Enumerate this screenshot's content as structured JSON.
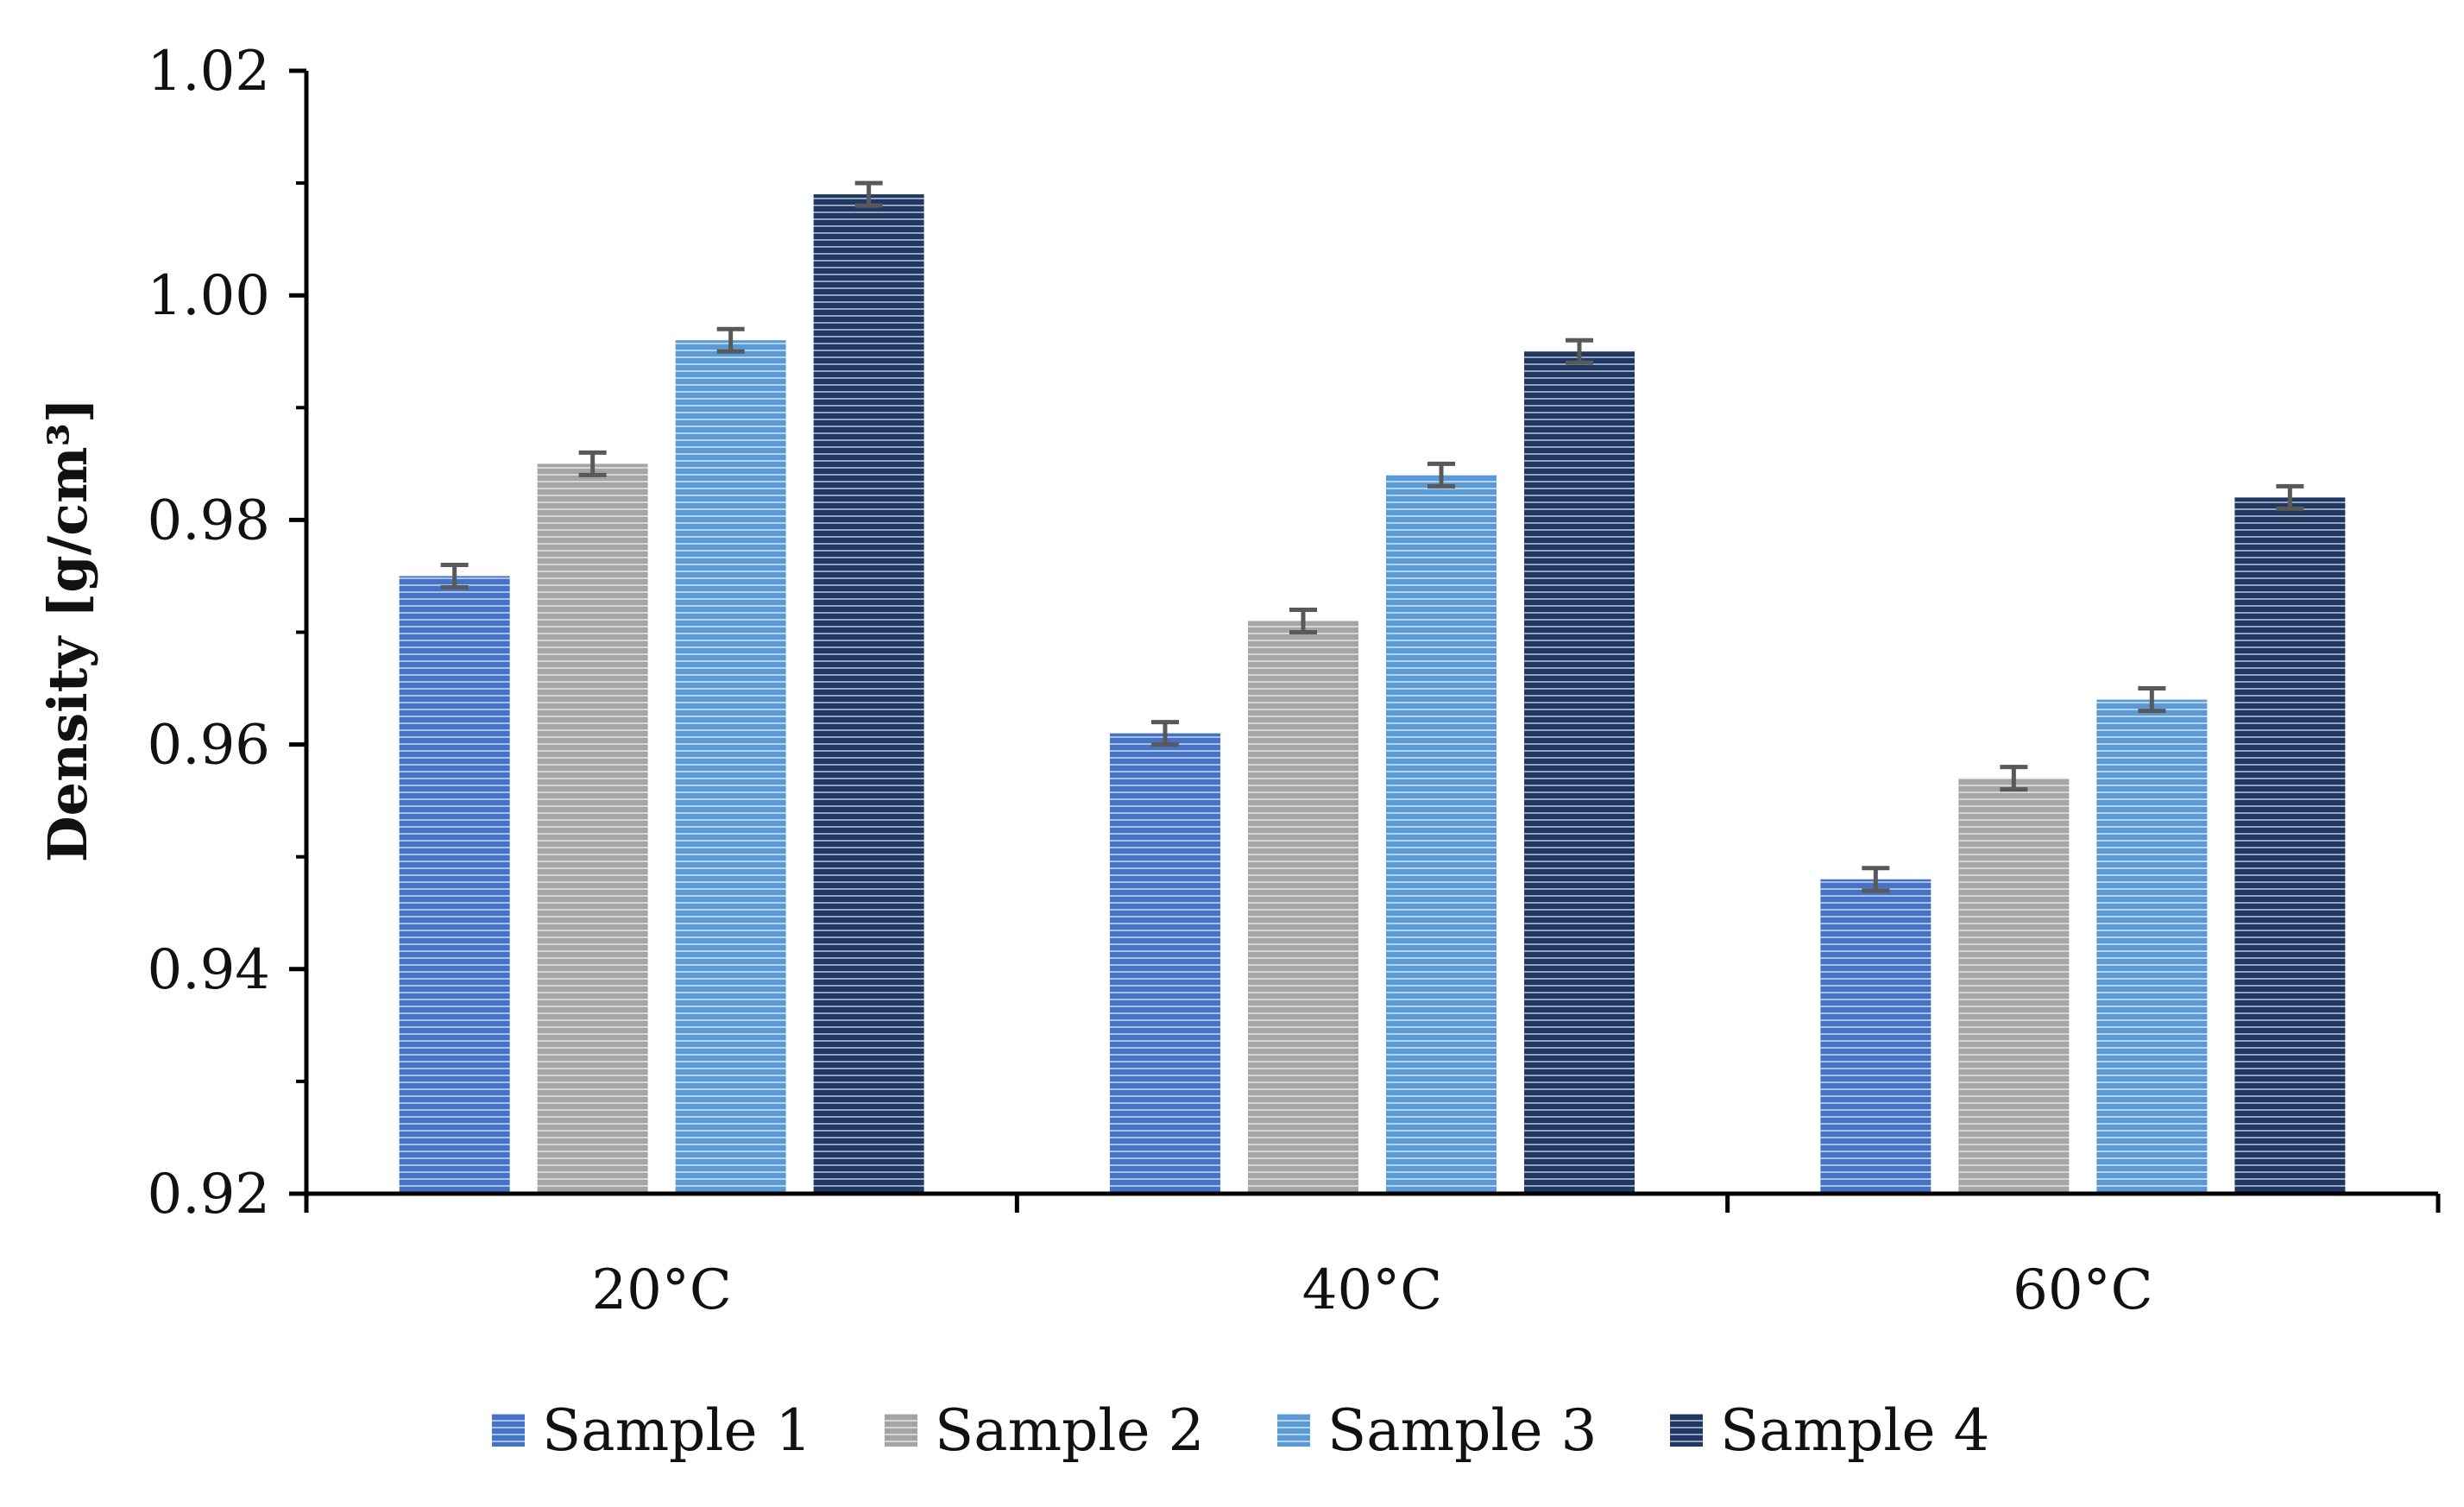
{
  "chart_data": {
    "type": "bar",
    "title": "",
    "xlabel": "",
    "ylabel": "Density [g/cm³]",
    "ylim": [
      0.92,
      1.02
    ],
    "yticks": [
      "0.92",
      "0.94",
      "0.96",
      "0.98",
      "1.00",
      "1.02"
    ],
    "grid": false,
    "legend_position": "bottom",
    "categories": [
      "20°C",
      "40°C",
      "60°C"
    ],
    "series": [
      {
        "name": "Sample 1",
        "values": [
          0.975,
          0.961,
          0.948
        ],
        "errors": [
          0.001,
          0.001,
          0.001
        ],
        "color": "#4472C4",
        "stripe": "#ffffff"
      },
      {
        "name": "Sample 2",
        "values": [
          0.985,
          0.971,
          0.957
        ],
        "errors": [
          0.001,
          0.001,
          0.001
        ],
        "color": "#A5A5A5",
        "stripe": "#ffffff"
      },
      {
        "name": "Sample 3",
        "values": [
          0.996,
          0.984,
          0.964
        ],
        "errors": [
          0.001,
          0.001,
          0.001
        ],
        "color": "#5B9BD5",
        "stripe": "#ffffff"
      },
      {
        "name": "Sample 4",
        "values": [
          1.009,
          0.995,
          0.982
        ],
        "errors": [
          0.001,
          0.001,
          0.001
        ],
        "color": "#203864",
        "stripe": "#ffffff"
      }
    ],
    "error_bar_color": "#595959"
  }
}
